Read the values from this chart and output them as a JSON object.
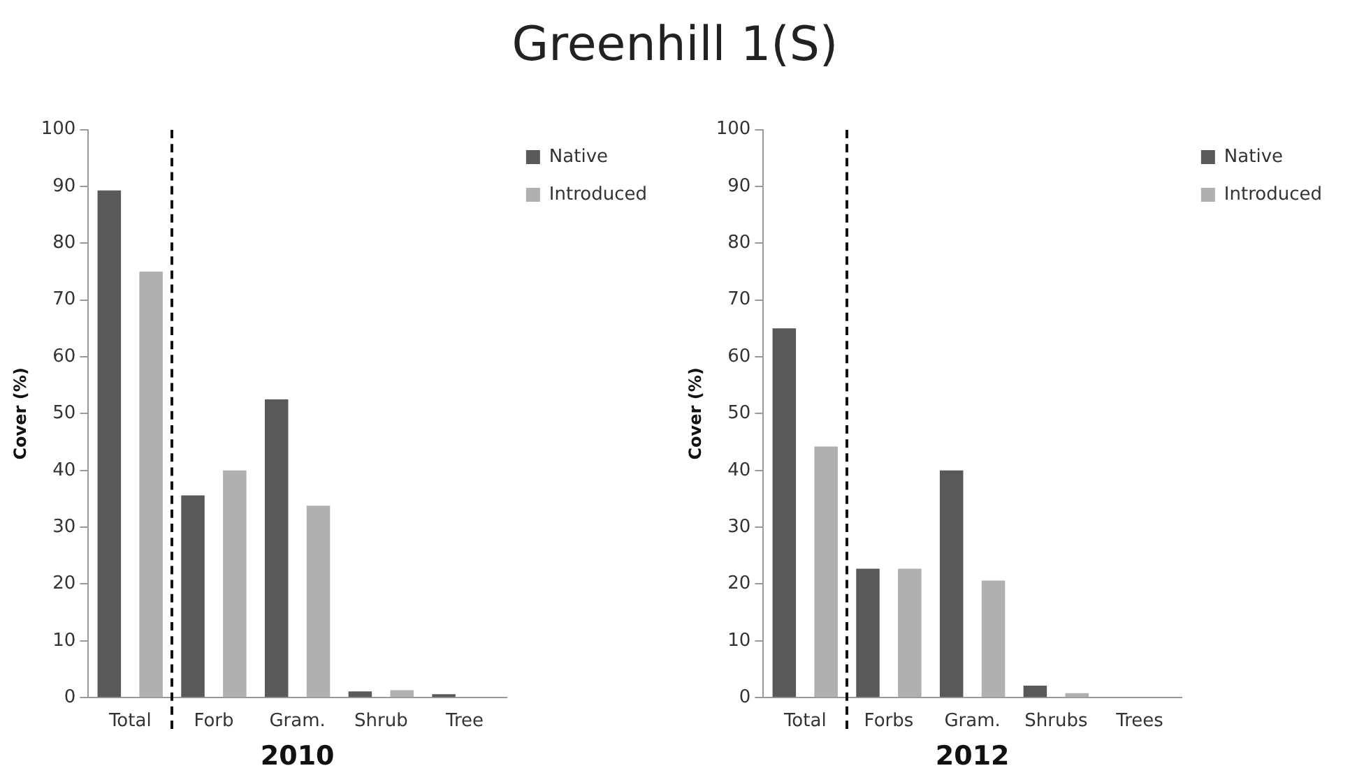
{
  "chart_data": [
    {
      "type": "bar",
      "title": "Greenhill 1(S)",
      "xlabel": "2010",
      "ylabel": "Cover (%)",
      "categories": [
        "Total",
        "Forb",
        "Gram.",
        "Shrub",
        "Tree"
      ],
      "series": [
        {
          "name": "Native",
          "color": "#595959",
          "values": [
            89.3,
            35.6,
            52.5,
            1.1,
            0.6
          ]
        },
        {
          "name": "Introduced",
          "color": "#b0b0b0",
          "values": [
            75,
            40,
            33.8,
            1.3,
            0
          ]
        }
      ],
      "ylim": [
        0,
        100
      ],
      "yticks": [
        0,
        10,
        20,
        30,
        40,
        50,
        60,
        70,
        80,
        90,
        100
      ],
      "grid": false,
      "legend": "top right"
    },
    {
      "type": "bar",
      "xlabel": "2012",
      "ylabel": "Cover (%)",
      "categories": [
        "Total",
        "Forbs",
        "Gram.",
        "Shrubs",
        "Trees"
      ],
      "series": [
        {
          "name": "Native",
          "color": "#595959",
          "values": [
            65,
            22.7,
            40,
            2.1,
            0
          ]
        },
        {
          "name": "Introduced",
          "color": "#b0b0b0",
          "values": [
            44.2,
            22.7,
            20.6,
            0.8,
            0
          ]
        }
      ],
      "ylim": [
        0,
        100
      ],
      "yticks": [
        0,
        10,
        20,
        30,
        40,
        50,
        60,
        70,
        80,
        90,
        100
      ],
      "grid": false,
      "legend": "top right"
    }
  ]
}
